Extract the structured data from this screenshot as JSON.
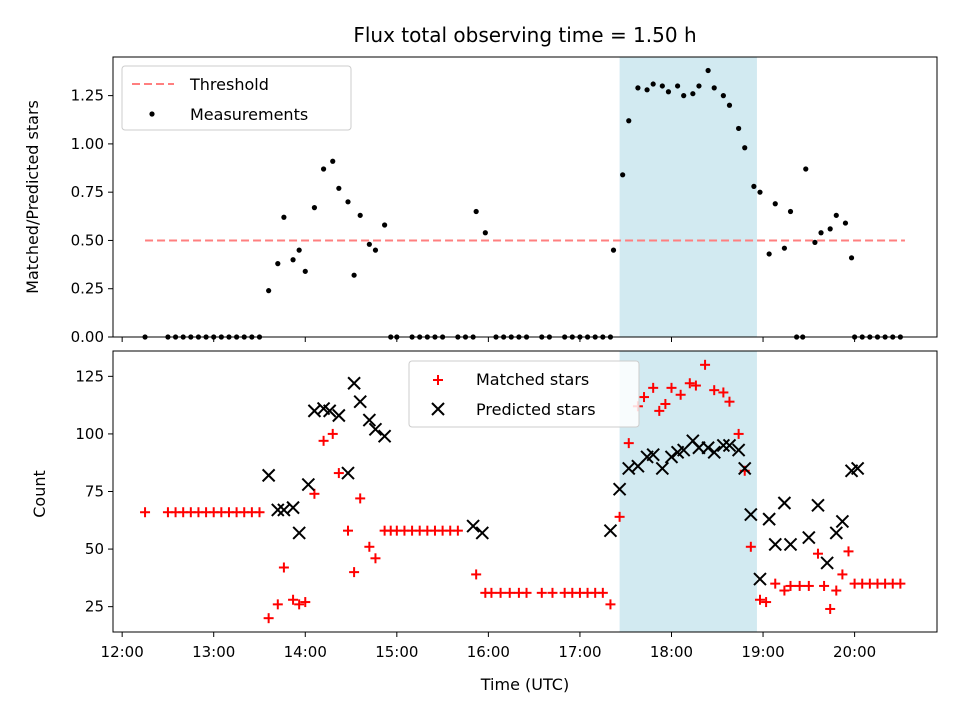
{
  "chart_data": [
    {
      "type": "scatter",
      "title": "Flux total observing time = 1.50 h",
      "xlabel": "",
      "ylabel": "Matched/Predicted stars",
      "ylim": [
        0,
        1.45
      ],
      "yticks": [
        "0.00",
        "0.25",
        "0.50",
        "0.75",
        "1.00",
        "1.25"
      ],
      "xlim": [
        "11:54",
        "20:54"
      ],
      "grid": false,
      "legend": "top-left",
      "highlight_span": {
        "x0": "17:26",
        "x1": "18:56",
        "color": "#add8e6"
      },
      "threshold": {
        "name": "Threshold",
        "y": 0.5,
        "x0": "12:15",
        "x1": "20:33",
        "color": "#ff7f7f"
      },
      "series": [
        {
          "name": "Measurements",
          "color": "#000000",
          "points": [
            [
              "12:15",
              0
            ],
            [
              "12:30",
              0
            ],
            [
              "12:35",
              0
            ],
            [
              "12:40",
              0
            ],
            [
              "12:45",
              0
            ],
            [
              "12:50",
              0
            ],
            [
              "12:55",
              0
            ],
            [
              "13:00",
              0
            ],
            [
              "13:05",
              0
            ],
            [
              "13:10",
              0
            ],
            [
              "13:15",
              0
            ],
            [
              "13:20",
              0
            ],
            [
              "13:25",
              0
            ],
            [
              "13:30",
              0
            ],
            [
              "13:36",
              0.24
            ],
            [
              "13:42",
              0.38
            ],
            [
              "13:46",
              0.62
            ],
            [
              "13:52",
              0.4
            ],
            [
              "13:56",
              0.45
            ],
            [
              "14:00",
              0.34
            ],
            [
              "14:06",
              0.67
            ],
            [
              "14:12",
              0.87
            ],
            [
              "14:18",
              0.91
            ],
            [
              "14:22",
              0.77
            ],
            [
              "14:28",
              0.7
            ],
            [
              "14:32",
              0.32
            ],
            [
              "14:36",
              0.63
            ],
            [
              "14:42",
              0.48
            ],
            [
              "14:46",
              0.45
            ],
            [
              "14:52",
              0.58
            ],
            [
              "14:56",
              0
            ],
            [
              "15:00",
              0
            ],
            [
              "15:10",
              0
            ],
            [
              "15:15",
              0
            ],
            [
              "15:20",
              0
            ],
            [
              "15:25",
              0
            ],
            [
              "15:30",
              0
            ],
            [
              "15:40",
              0
            ],
            [
              "15:45",
              0
            ],
            [
              "15:50",
              0
            ],
            [
              "15:52",
              0.65
            ],
            [
              "15:58",
              0.54
            ],
            [
              "16:05",
              0
            ],
            [
              "16:10",
              0
            ],
            [
              "16:15",
              0
            ],
            [
              "16:20",
              0
            ],
            [
              "16:25",
              0
            ],
            [
              "16:35",
              0
            ],
            [
              "16:40",
              0
            ],
            [
              "16:50",
              0
            ],
            [
              "16:55",
              0
            ],
            [
              "17:00",
              0
            ],
            [
              "17:05",
              0
            ],
            [
              "17:10",
              0
            ],
            [
              "17:15",
              0
            ],
            [
              "17:20",
              0
            ],
            [
              "17:22",
              0.45
            ],
            [
              "17:28",
              0.84
            ],
            [
              "17:32",
              1.12
            ],
            [
              "17:38",
              1.29
            ],
            [
              "17:44",
              1.28
            ],
            [
              "17:48",
              1.31
            ],
            [
              "17:54",
              1.3
            ],
            [
              "17:58",
              1.27
            ],
            [
              "18:04",
              1.3
            ],
            [
              "18:08",
              1.25
            ],
            [
              "18:14",
              1.26
            ],
            [
              "18:18",
              1.3
            ],
            [
              "18:24",
              1.38
            ],
            [
              "18:28",
              1.29
            ],
            [
              "18:34",
              1.25
            ],
            [
              "18:38",
              1.2
            ],
            [
              "18:44",
              1.08
            ],
            [
              "18:48",
              0.98
            ],
            [
              "18:54",
              0.78
            ],
            [
              "18:58",
              0.75
            ],
            [
              "19:04",
              0.43
            ],
            [
              "19:08",
              0.69
            ],
            [
              "19:14",
              0.46
            ],
            [
              "19:18",
              0.65
            ],
            [
              "19:22",
              0
            ],
            [
              "19:26",
              0
            ],
            [
              "19:28",
              0.87
            ],
            [
              "19:34",
              0.49
            ],
            [
              "19:38",
              0.54
            ],
            [
              "19:44",
              0.56
            ],
            [
              "19:48",
              0.63
            ],
            [
              "19:54",
              0.59
            ],
            [
              "19:58",
              0.41
            ],
            [
              "20:00",
              0
            ],
            [
              "20:05",
              0
            ],
            [
              "20:10",
              0
            ],
            [
              "20:15",
              0
            ],
            [
              "20:20",
              0
            ],
            [
              "20:25",
              0
            ],
            [
              "20:30",
              0
            ]
          ]
        }
      ]
    },
    {
      "type": "scatter",
      "title": "",
      "xlabel": "Time (UTC)",
      "ylabel": "Count",
      "ylim": [
        14,
        136
      ],
      "yticks": [
        "25",
        "50",
        "75",
        "100",
        "125"
      ],
      "xlim": [
        "11:54",
        "20:54"
      ],
      "xticks": [
        "12:00",
        "13:00",
        "14:00",
        "15:00",
        "16:00",
        "17:00",
        "18:00",
        "19:00",
        "20:00"
      ],
      "grid": false,
      "legend": "top-center",
      "highlight_span": {
        "x0": "17:26",
        "x1": "18:56",
        "color": "#add8e6"
      },
      "series": [
        {
          "name": "Matched stars",
          "marker": "plus",
          "color": "#ff0000",
          "points": [
            [
              "12:15",
              66
            ],
            [
              "12:30",
              66
            ],
            [
              "12:35",
              66
            ],
            [
              "12:40",
              66
            ],
            [
              "12:45",
              66
            ],
            [
              "12:50",
              66
            ],
            [
              "12:55",
              66
            ],
            [
              "13:00",
              66
            ],
            [
              "13:05",
              66
            ],
            [
              "13:10",
              66
            ],
            [
              "13:15",
              66
            ],
            [
              "13:20",
              66
            ],
            [
              "13:25",
              66
            ],
            [
              "13:30",
              66
            ],
            [
              "13:36",
              20
            ],
            [
              "13:42",
              26
            ],
            [
              "13:46",
              42
            ],
            [
              "13:52",
              28
            ],
            [
              "13:56",
              26
            ],
            [
              "14:00",
              27
            ],
            [
              "14:06",
              74
            ],
            [
              "14:12",
              97
            ],
            [
              "14:18",
              100
            ],
            [
              "14:22",
              83
            ],
            [
              "14:28",
              58
            ],
            [
              "14:32",
              40
            ],
            [
              "14:36",
              72
            ],
            [
              "14:42",
              51
            ],
            [
              "14:46",
              46
            ],
            [
              "14:52",
              58
            ],
            [
              "14:56",
              58
            ],
            [
              "15:00",
              58
            ],
            [
              "15:05",
              58
            ],
            [
              "15:10",
              58
            ],
            [
              "15:15",
              58
            ],
            [
              "15:20",
              58
            ],
            [
              "15:25",
              58
            ],
            [
              "15:30",
              58
            ],
            [
              "15:35",
              58
            ],
            [
              "15:40",
              58
            ],
            [
              "15:52",
              39
            ],
            [
              "15:58",
              31
            ],
            [
              "16:02",
              31
            ],
            [
              "16:08",
              31
            ],
            [
              "16:14",
              31
            ],
            [
              "16:20",
              31
            ],
            [
              "16:25",
              31
            ],
            [
              "16:35",
              31
            ],
            [
              "16:42",
              31
            ],
            [
              "16:50",
              31
            ],
            [
              "16:55",
              31
            ],
            [
              "17:00",
              31
            ],
            [
              "17:05",
              31
            ],
            [
              "17:10",
              31
            ],
            [
              "17:15",
              31
            ],
            [
              "17:20",
              26
            ],
            [
              "17:26",
              64
            ],
            [
              "17:32",
              96
            ],
            [
              "17:38",
              112
            ],
            [
              "17:42",
              116
            ],
            [
              "17:48",
              120
            ],
            [
              "17:52",
              110
            ],
            [
              "17:56",
              113
            ],
            [
              "18:00",
              120
            ],
            [
              "18:06",
              117
            ],
            [
              "18:12",
              122
            ],
            [
              "18:16",
              121
            ],
            [
              "18:22",
              130
            ],
            [
              "18:28",
              119
            ],
            [
              "18:34",
              118
            ],
            [
              "18:38",
              114
            ],
            [
              "18:44",
              100
            ],
            [
              "18:48",
              84
            ],
            [
              "18:52",
              51
            ],
            [
              "18:58",
              28
            ],
            [
              "19:02",
              27
            ],
            [
              "19:08",
              35
            ],
            [
              "19:14",
              32
            ],
            [
              "19:18",
              34
            ],
            [
              "19:24",
              34
            ],
            [
              "19:30",
              34
            ],
            [
              "19:36",
              48
            ],
            [
              "19:40",
              34
            ],
            [
              "19:44",
              24
            ],
            [
              "19:48",
              32
            ],
            [
              "19:52",
              39
            ],
            [
              "19:56",
              49
            ],
            [
              "20:00",
              35
            ],
            [
              "20:05",
              35
            ],
            [
              "20:10",
              35
            ],
            [
              "20:15",
              35
            ],
            [
              "20:20",
              35
            ],
            [
              "20:25",
              35
            ],
            [
              "20:30",
              35
            ]
          ]
        },
        {
          "name": "Predicted stars",
          "marker": "x",
          "color": "#000000",
          "points": [
            [
              "13:36",
              82
            ],
            [
              "13:42",
              67
            ],
            [
              "13:46",
              67
            ],
            [
              "13:52",
              68
            ],
            [
              "13:56",
              57
            ],
            [
              "14:02",
              78
            ],
            [
              "14:06",
              110
            ],
            [
              "14:12",
              111
            ],
            [
              "14:16",
              110
            ],
            [
              "14:22",
              108
            ],
            [
              "14:28",
              83
            ],
            [
              "14:32",
              122
            ],
            [
              "14:36",
              114
            ],
            [
              "14:42",
              106
            ],
            [
              "14:46",
              102
            ],
            [
              "14:52",
              99
            ],
            [
              "15:50",
              60
            ],
            [
              "15:56",
              57
            ],
            [
              "17:20",
              58
            ],
            [
              "17:26",
              76
            ],
            [
              "17:32",
              85
            ],
            [
              "17:38",
              86
            ],
            [
              "17:44",
              90
            ],
            [
              "17:48",
              91
            ],
            [
              "17:54",
              85
            ],
            [
              "18:00",
              90
            ],
            [
              "18:04",
              92
            ],
            [
              "18:08",
              93
            ],
            [
              "18:14",
              97
            ],
            [
              "18:18",
              94
            ],
            [
              "18:24",
              94
            ],
            [
              "18:28",
              92
            ],
            [
              "18:34",
              95
            ],
            [
              "18:38",
              95
            ],
            [
              "18:44",
              93
            ],
            [
              "18:48",
              85
            ],
            [
              "18:52",
              65
            ],
            [
              "18:58",
              37
            ],
            [
              "19:04",
              63
            ],
            [
              "19:08",
              52
            ],
            [
              "19:14",
              70
            ],
            [
              "19:18",
              52
            ],
            [
              "19:30",
              55
            ],
            [
              "19:36",
              69
            ],
            [
              "19:42",
              44
            ],
            [
              "19:48",
              57
            ],
            [
              "19:52",
              62
            ],
            [
              "19:58",
              84
            ],
            [
              "20:02",
              85
            ]
          ]
        }
      ]
    }
  ]
}
